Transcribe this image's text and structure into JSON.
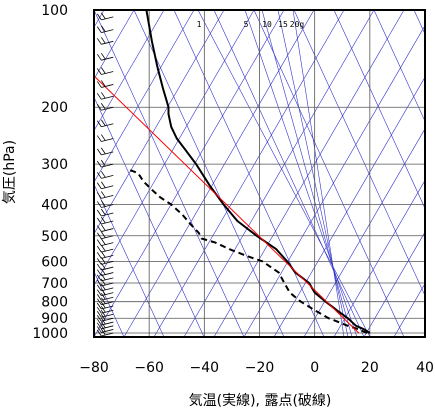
{
  "chart_data": {
    "type": "line",
    "xlabel": "気温(実線), 露点(破線)",
    "ylabel": "気圧(hPa)",
    "xlim": [
      -80,
      40
    ],
    "ylim": [
      1050,
      100
    ],
    "y_scale": "log",
    "grid": true,
    "x_ticks": [
      -80,
      -60,
      -40,
      -20,
      0,
      20,
      40
    ],
    "x_tick_labels": [
      "−80",
      "−60",
      "−40",
      "−20",
      "0",
      "20",
      "40"
    ],
    "y_ticks": [
      1000,
      900,
      800,
      700,
      600,
      500,
      400,
      300,
      200,
      100
    ],
    "y_tick_labels": [
      "1000",
      "900",
      "800",
      "700",
      "600",
      "500",
      "400",
      "300",
      "200",
      "100"
    ],
    "mixing_ratio_labels": [
      "1",
      "5",
      "10",
      "15",
      "20g"
    ],
    "colors": {
      "temperature": "#000000",
      "dewpoint": "#000000",
      "reference": "#ff0000",
      "isopleths": "#3333cc",
      "grid": "#555555",
      "wind_barbs": "#000000"
    },
    "series": [
      {
        "line_style": "solid",
        "x": [
          20,
          18,
          15,
          12,
          8,
          4,
          0,
          -2,
          -7,
          -10,
          -14,
          -21,
          -28,
          -33,
          -38,
          -43,
          -47,
          -50,
          -52,
          -53,
          -53,
          -55,
          -57,
          -59,
          -61
        ],
        "y": [
          1000,
          975,
          950,
          900,
          850,
          800,
          750,
          700,
          650,
          600,
          550,
          500,
          450,
          400,
          350,
          300,
          270,
          250,
          230,
          210,
          200,
          175,
          150,
          125,
          100
        ]
      },
      {
        "line_style": "dashed",
        "x": [
          19,
          16,
          12,
          8,
          5,
          0,
          -5,
          -9,
          -11,
          -13,
          -19,
          -24,
          -31,
          -36,
          -41,
          -42,
          -45,
          -48,
          -52,
          -56,
          -59,
          -62,
          -64,
          -66,
          -68
        ],
        "y": [
          1000,
          975,
          950,
          920,
          900,
          850,
          800,
          750,
          700,
          650,
          600,
          580,
          550,
          525,
          510,
          490,
          460,
          430,
          400,
          380,
          360,
          340,
          320,
          315,
          312
        ]
      },
      {
        "line_style": "solid",
        "x": [
          16,
          -80
        ],
        "y": [
          1000,
          160
        ]
      }
    ],
    "wind_barbs": {
      "column_temperature": -73,
      "pressures": [
        1000,
        975,
        950,
        925,
        900,
        875,
        850,
        825,
        800,
        775,
        750,
        725,
        700,
        675,
        650,
        625,
        600,
        575,
        550,
        525,
        500,
        475,
        450,
        425,
        400,
        375,
        350,
        325,
        300,
        275,
        250,
        225,
        200,
        185,
        170,
        155,
        140,
        125,
        115,
        105
      ]
    }
  }
}
